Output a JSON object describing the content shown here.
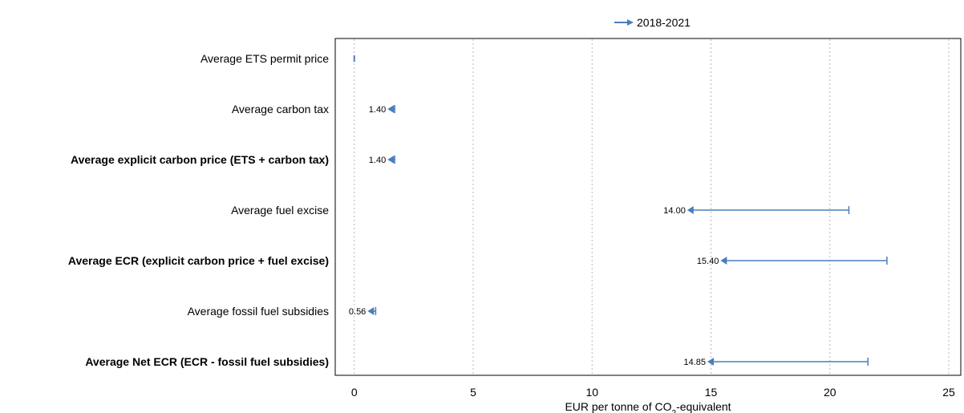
{
  "chart_data": {
    "type": "arrow-range",
    "legend": {
      "placement": "top-center",
      "entries": [
        {
          "name": "2018-2021",
          "color": "#4a7ebb"
        }
      ]
    },
    "x_axis": {
      "title_prefix": "EUR per tonne of CO",
      "title_sub": "2",
      "title_suffix": "-equivalent",
      "min": -0.8,
      "max": 25,
      "ticks": [
        0,
        5,
        10,
        15,
        20,
        25
      ],
      "tick_labels": [
        "0",
        "5",
        "10",
        "15",
        "20",
        "25"
      ],
      "grid": "vertical-dotted"
    },
    "series": [
      {
        "name": "2018-2021",
        "color": "#4a7ebb",
        "points": [
          {
            "category": "Average ETS permit price",
            "bold": false,
            "start": 0.0,
            "end": 0.0,
            "label": ""
          },
          {
            "category": "Average carbon tax",
            "bold": false,
            "start": 1.7,
            "end": 1.4,
            "label": "1.40"
          },
          {
            "category": "Average explicit carbon price (ETS + carbon tax)",
            "bold": true,
            "start": 1.7,
            "end": 1.4,
            "label": "1.40"
          },
          {
            "category": "Average fuel excise",
            "bold": false,
            "start": 20.8,
            "end": 14.0,
            "label": "14.00"
          },
          {
            "category": "Average ECR (explicit carbon price + fuel excise)",
            "bold": true,
            "start": 22.4,
            "end": 15.4,
            "label": "15.40"
          },
          {
            "category": "Average fossil fuel subsidies",
            "bold": false,
            "start": 0.9,
            "end": 0.56,
            "label": "0.56"
          },
          {
            "category": "Average Net ECR (ECR - fossil fuel subsidies)",
            "bold": true,
            "start": 21.6,
            "end": 14.85,
            "label": "14.85"
          }
        ]
      }
    ]
  }
}
